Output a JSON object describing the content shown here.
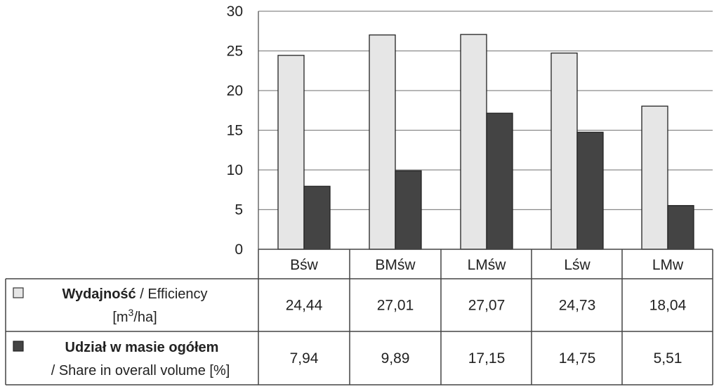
{
  "chart_data": {
    "type": "bar",
    "categories": [
      "Bśw",
      "BMśw",
      "LMśw",
      "Lśw",
      "LMw"
    ],
    "ylim": [
      0,
      30
    ],
    "yticks": [
      0,
      5,
      10,
      15,
      20,
      25,
      30
    ],
    "grid": true,
    "legend_placement": "data-table-left",
    "series": [
      {
        "name_bold": "Wydajność",
        "name_rest": " / Efficiency",
        "unit_pre": "[m",
        "unit_sup": "3",
        "unit_post": "/ha]",
        "color": "#e6e6e6",
        "values": [
          24.44,
          27.01,
          27.07,
          24.73,
          18.04
        ],
        "labels": [
          "24,44",
          "27,01",
          "27,07",
          "24,73",
          "18,04"
        ]
      },
      {
        "name_bold": "Udział w masie ogółem",
        "name_rest": "/ Share in overall volume [%]",
        "color": "#444444",
        "values": [
          7.94,
          9.89,
          17.15,
          14.75,
          5.51
        ],
        "labels": [
          "7,94",
          "9,89",
          "17,15",
          "14,75",
          "5,51"
        ]
      }
    ]
  }
}
